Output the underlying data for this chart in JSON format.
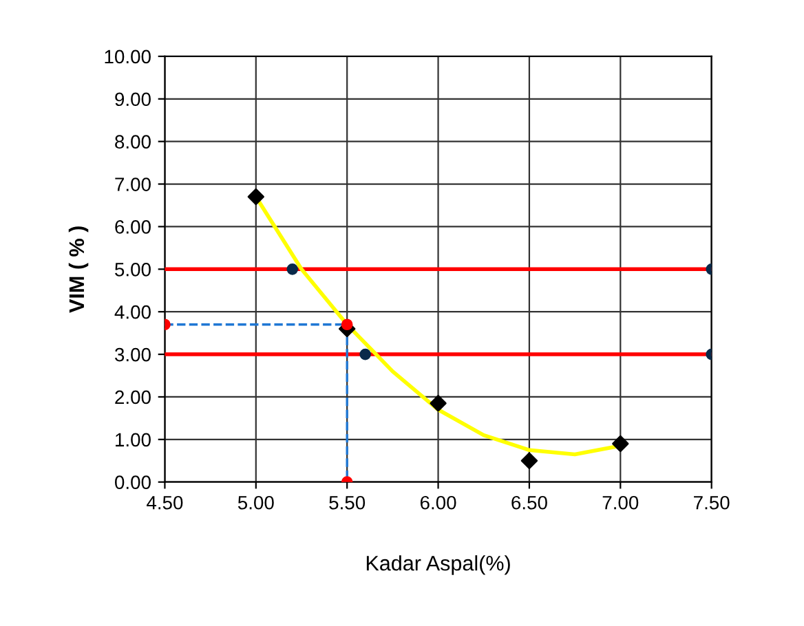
{
  "chart_data": {
    "type": "scatter",
    "xlabel": "Kadar Aspal(%)",
    "ylabel": "VIM ( % )",
    "xlim": [
      4.5,
      7.5
    ],
    "ylim": [
      0,
      10
    ],
    "xticks": [
      {
        "value": 4.5,
        "label": "4.50"
      },
      {
        "value": 5.0,
        "label": "5.00"
      },
      {
        "value": 5.5,
        "label": "5.50"
      },
      {
        "value": 6.0,
        "label": "6.00"
      },
      {
        "value": 6.5,
        "label": "6.50"
      },
      {
        "value": 7.0,
        "label": "7.00"
      },
      {
        "value": 7.5,
        "label": "7.50"
      }
    ],
    "yticks": [
      {
        "value": 0,
        "label": "0.00"
      },
      {
        "value": 1,
        "label": "1.00"
      },
      {
        "value": 2,
        "label": "2.00"
      },
      {
        "value": 3,
        "label": "3.00"
      },
      {
        "value": 4,
        "label": "4.00"
      },
      {
        "value": 5,
        "label": "5.00"
      },
      {
        "value": 6,
        "label": "6.00"
      },
      {
        "value": 7,
        "label": "7.00"
      },
      {
        "value": 8,
        "label": "8.00"
      },
      {
        "value": 9,
        "label": "9.00"
      },
      {
        "value": 10,
        "label": "10.00"
      }
    ],
    "grid": true,
    "series": [
      {
        "type": "line",
        "color": "#ff0000",
        "marker": "none",
        "x": [
          4.5,
          7.5
        ],
        "values": [
          5,
          5
        ]
      },
      {
        "type": "line",
        "color": "#ff0000",
        "marker": "none",
        "x": [
          4.5,
          7.5
        ],
        "values": [
          3,
          3
        ]
      },
      {
        "type": "line",
        "color": "#ffff00",
        "marker": "none",
        "x": [
          5.0,
          5.25,
          5.5,
          5.75,
          6.0,
          6.25,
          6.5,
          6.75,
          7.0
        ],
        "values": [
          6.7,
          5.0,
          3.7,
          2.6,
          1.7,
          1.1,
          0.75,
          0.65,
          0.85
        ]
      },
      {
        "color": "#000000",
        "marker": "diamond",
        "x": [
          5.0,
          5.5,
          6.0,
          6.5,
          7.0
        ],
        "values": [
          6.7,
          3.6,
          1.85,
          0.5,
          0.9
        ]
      },
      {
        "color": "#0a2a4a",
        "marker": "circle",
        "x": [
          5.2,
          7.5,
          5.6,
          7.5
        ],
        "values": [
          5,
          5,
          3,
          3
        ]
      },
      {
        "type": "line",
        "color": "#1f77d4",
        "marker": "none",
        "line_style": "dashed",
        "x": [
          4.5,
          5.5,
          5.5
        ],
        "values": [
          3.7,
          3.7,
          0
        ]
      },
      {
        "color": "#ff0000",
        "marker": "circle",
        "x": [
          4.5,
          5.5,
          5.5
        ],
        "values": [
          3.7,
          3.7,
          0
        ]
      }
    ]
  }
}
